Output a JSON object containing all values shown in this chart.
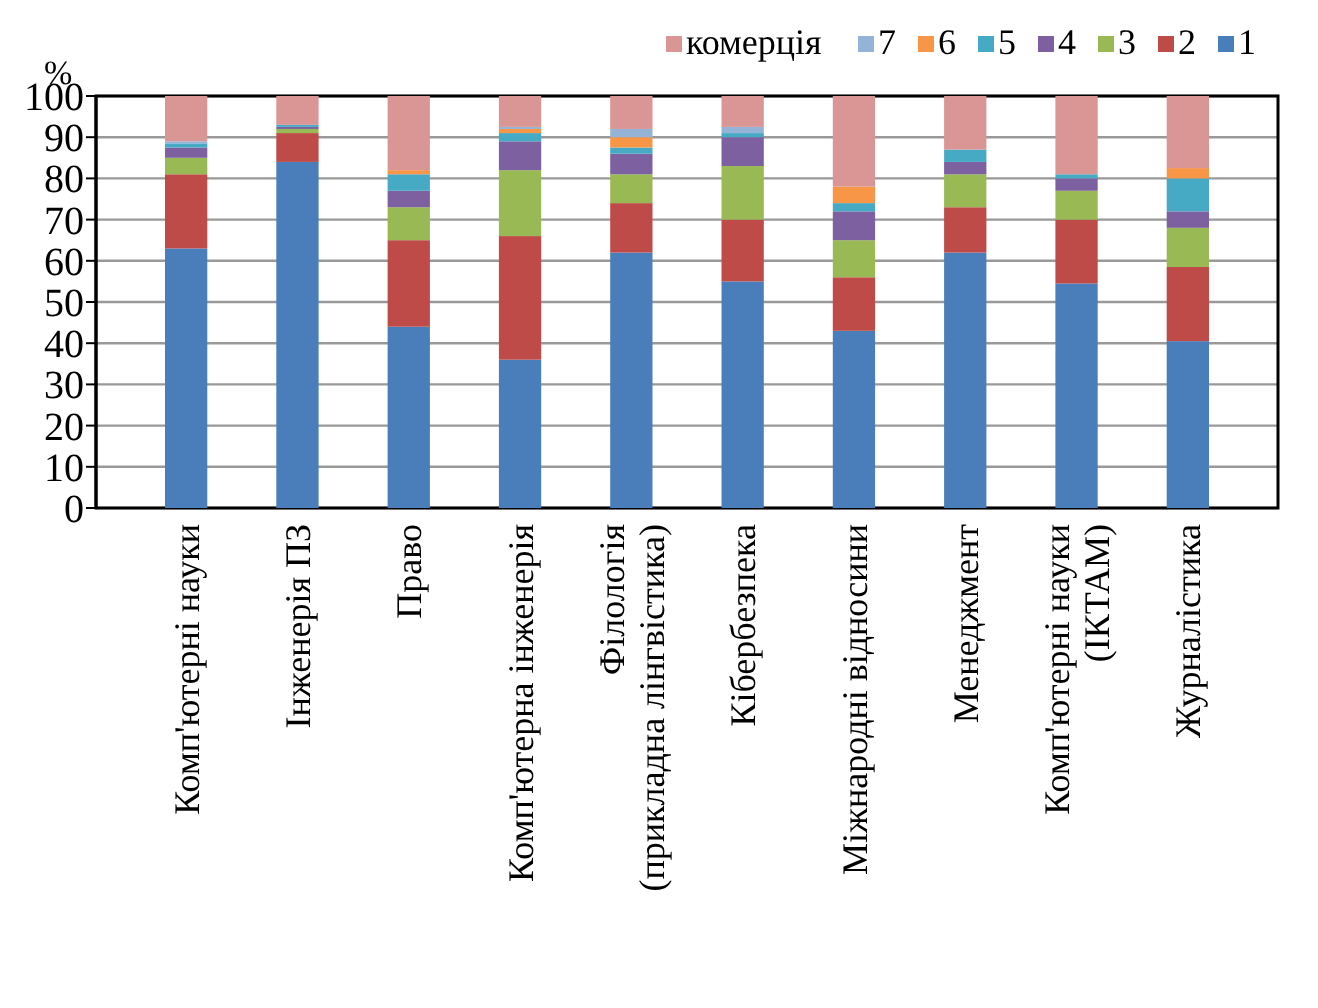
{
  "chart_data": {
    "type": "bar",
    "stacked": true,
    "ylabel": "%",
    "ylim": [
      0,
      100
    ],
    "yticks": [
      0,
      10,
      20,
      30,
      40,
      50,
      60,
      70,
      80,
      90,
      100
    ],
    "grid": "y",
    "legend": "top right",
    "categories": [
      "Комп'ютерні науки",
      "Інженерія ПЗ",
      "Право",
      "Комп'ютерна інженерія",
      "Філологія\n(прикладна лінгвістика)",
      "Кібербезпека",
      "Міжнародні відносини",
      "Менеджмент",
      "Комп'ютерні науки\n(ІКТАМ)",
      "Журналістика"
    ],
    "series": [
      {
        "name": "1",
        "color": "#4a7ebb",
        "values": [
          63,
          84,
          44,
          36,
          62,
          55,
          43,
          62,
          54.5,
          40.5
        ]
      },
      {
        "name": "2",
        "color": "#be4b48",
        "values": [
          18,
          7,
          21,
          30,
          12,
          15,
          13,
          11,
          15.5,
          18
        ]
      },
      {
        "name": "3",
        "color": "#98b954",
        "values": [
          4,
          1,
          8,
          16,
          7,
          13,
          9,
          8,
          7,
          9.5
        ]
      },
      {
        "name": "4",
        "color": "#7d60a0",
        "values": [
          2.5,
          0.5,
          4,
          7,
          5,
          7,
          7,
          3,
          3,
          4
        ]
      },
      {
        "name": "5",
        "color": "#46aac5",
        "values": [
          1,
          0.5,
          4,
          2,
          1.5,
          1,
          2,
          3,
          1,
          8
        ]
      },
      {
        "name": "6",
        "color": "#f79646",
        "values": [
          0,
          0,
          1,
          1,
          2.5,
          0,
          4,
          0,
          0,
          2.5
        ]
      },
      {
        "name": "7",
        "color": "#95b3d7",
        "values": [
          0.5,
          0,
          0,
          0.5,
          2,
          1.5,
          0,
          0,
          0,
          0
        ]
      },
      {
        "name": "комерція",
        "color": "#d99694",
        "values": [
          11,
          7,
          18,
          7.5,
          8,
          7.5,
          22,
          13,
          19,
          17.5
        ]
      }
    ]
  }
}
